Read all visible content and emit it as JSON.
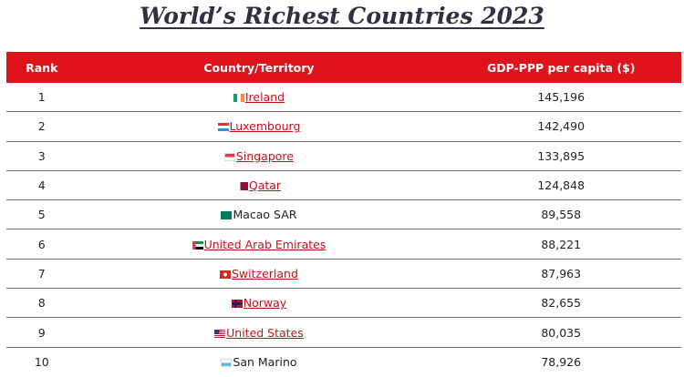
{
  "header": {
    "title": "World’s Richest Countries 2023"
  },
  "table": {
    "columns": [
      "Rank",
      "Country/Territory",
      "GDP-PPP per capita ($)"
    ],
    "rows": [
      {
        "rank": "1",
        "country": "Ireland",
        "gdp": "145,196",
        "link": true
      },
      {
        "rank": "2",
        "country": "Luxembourg",
        "gdp": "142,490",
        "link": true
      },
      {
        "rank": "3",
        "country": "Singapore",
        "gdp": "133,895",
        "link": true
      },
      {
        "rank": "4",
        "country": "Qatar",
        "gdp": "124,848",
        "link": true
      },
      {
        "rank": "5",
        "country": "Macao SAR",
        "gdp": "89,558",
        "link": false
      },
      {
        "rank": "6",
        "country": "United Arab Emirates",
        "gdp": "88,221",
        "link": true
      },
      {
        "rank": "7",
        "country": "Switzerland",
        "gdp": "87,963",
        "link": true
      },
      {
        "rank": "8",
        "country": "Norway",
        "gdp": "82,655",
        "link": true
      },
      {
        "rank": "9",
        "country": "United States",
        "gdp": "80,035",
        "link": true
      },
      {
        "rank": "10",
        "country": "San Marino",
        "gdp": "78,926",
        "link": false
      }
    ]
  }
}
